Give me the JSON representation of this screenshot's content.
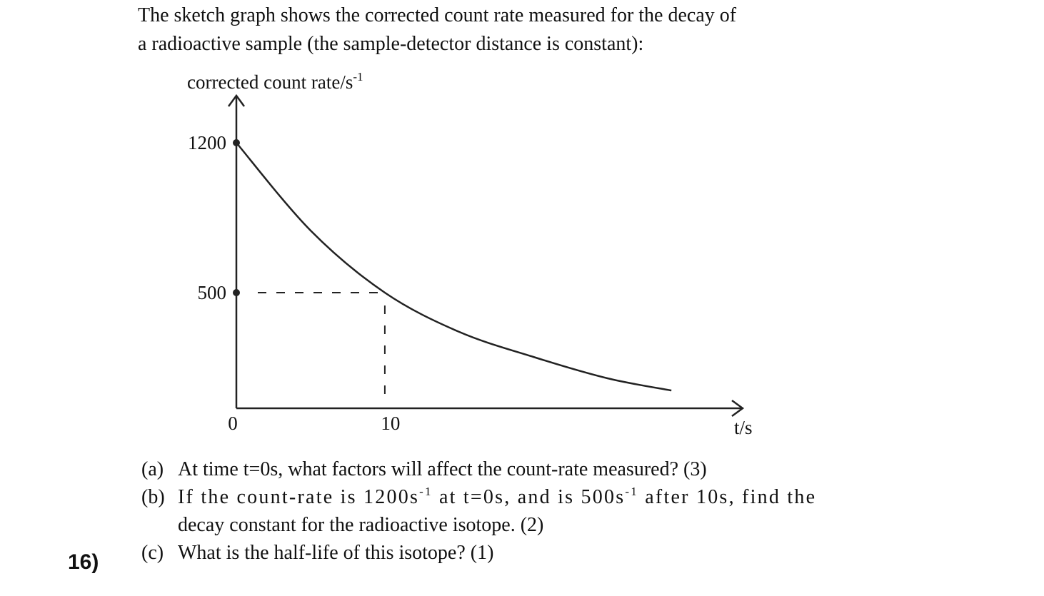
{
  "intro": [
    "The sketch graph shows the corrected count rate measured for the decay of",
    "a radioactive sample (the sample-detector distance is constant):"
  ],
  "chart_data": {
    "type": "line",
    "y_label": [
      "corrected count rate/s",
      "-1"
    ],
    "x_label": "t/s",
    "x": [
      0,
      5,
      10,
      15,
      20,
      25,
      29.3
    ],
    "values": [
      1200,
      790,
      500,
      317,
      200,
      100,
      43
    ],
    "xlim": [
      0,
      34.1
    ],
    "ylim": [
      -40,
      1420
    ],
    "xticks": [
      0,
      10
    ],
    "yticks": [
      1200,
      500
    ],
    "color": "#222"
  },
  "questions": [
    {
      "label": "(a)",
      "lines": [
        [
          "At time t=0s, what factors will affect the count-rate measured? (3)"
        ]
      ]
    },
    {
      "label": "(b)",
      "lines": [
        [
          "If the count-rate is 1200s",
          "-1",
          " at t=0s, and is 500s",
          "-1",
          " after 10s, find the"
        ],
        [
          "decay constant for the radioactive isotope. (2)"
        ]
      ]
    },
    {
      "label": "(c)",
      "lines": [
        [
          "What is the half-life of this isotope? (1)"
        ]
      ]
    }
  ],
  "number": "16)"
}
